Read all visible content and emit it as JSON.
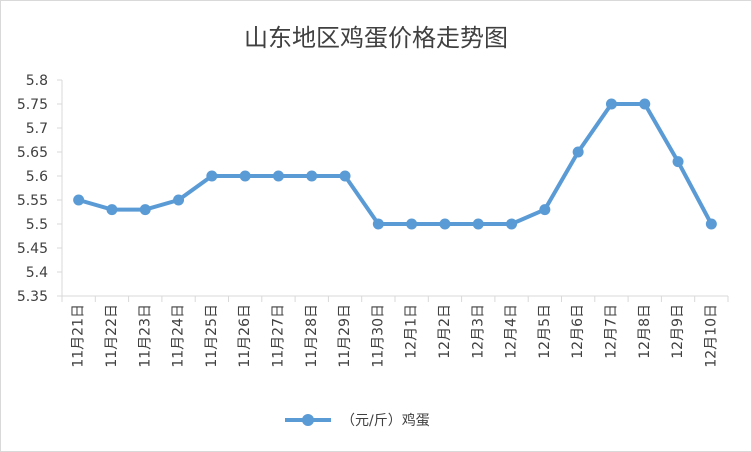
{
  "chart_data": {
    "type": "line",
    "title": "山东地区鸡蛋价格走势图",
    "categories": [
      "11月21日",
      "11月22日",
      "11月23日",
      "11月24日",
      "11月25日",
      "11月26日",
      "11月27日",
      "11月28日",
      "11月29日",
      "11月30日",
      "12月1日",
      "12月2日",
      "12月3日",
      "12月4日",
      "12月5日",
      "12月6日",
      "12月7日",
      "12月8日",
      "12月9日",
      "12月10日"
    ],
    "series": [
      {
        "name": "（元/斤）鸡蛋",
        "values": [
          5.55,
          5.53,
          5.53,
          5.55,
          5.6,
          5.6,
          5.6,
          5.6,
          5.6,
          5.5,
          5.5,
          5.5,
          5.5,
          5.5,
          5.53,
          5.65,
          5.75,
          5.75,
          5.63,
          5.5
        ]
      }
    ],
    "ylim": [
      5.35,
      5.8
    ],
    "yticks": [
      5.35,
      5.4,
      5.45,
      5.5,
      5.55,
      5.6,
      5.65,
      5.7,
      5.75,
      5.8
    ],
    "ytick_labels": [
      "5.35",
      "5.4",
      "5.45",
      "5.5",
      "5.55",
      "5.6",
      "5.65",
      "5.7",
      "5.75",
      "5.8"
    ],
    "grid": false,
    "legend_position": "bottom",
    "color": "#5b9bd5"
  }
}
